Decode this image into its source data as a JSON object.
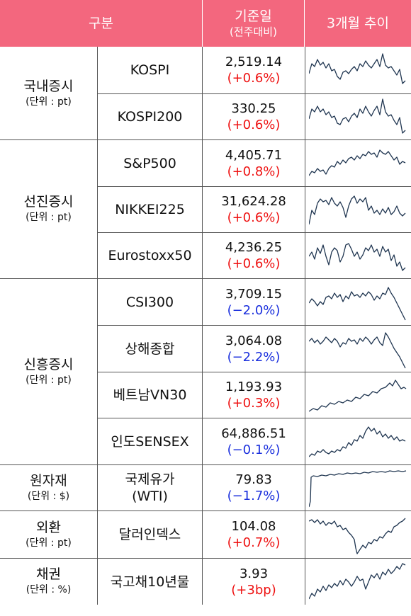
{
  "header": {
    "category": "구분",
    "base_date": "기준일",
    "base_date_sub": "(전주대비)",
    "trend": "3개월 추이"
  },
  "colors": {
    "header_bg": "#f3677e",
    "up": "#ee1111",
    "down": "#1a2fdd",
    "line": "#1f3550"
  },
  "groups": [
    {
      "label": "국내증시",
      "unit": "(단위 : pt)"
    },
    {
      "label": "선진증시",
      "unit": "(단위 : pt)"
    },
    {
      "label": "신흥증시",
      "unit": "(단위 : pt)"
    },
    {
      "label": "원자재",
      "unit": "(단위 : $)"
    },
    {
      "label": "외환",
      "unit": "(단위 : pt)"
    },
    {
      "label": "채권",
      "unit": "(단위 : %)"
    }
  ],
  "rows": [
    {
      "name": "KOSPI",
      "value": "2,519.14",
      "change": "(+0.6%)",
      "direction": "up"
    },
    {
      "name": "KOSPI200",
      "value": "330.25",
      "change": "(+0.6%)",
      "direction": "up"
    },
    {
      "name": "S&P500",
      "value": "4,405.71",
      "change": "(+0.8%)",
      "direction": "up"
    },
    {
      "name": "NIKKEI225",
      "value": "31,624.28",
      "change": "(+0.6%)",
      "direction": "up"
    },
    {
      "name": "Eurostoxx50",
      "value": "4,236.25",
      "change": "(+0.6%)",
      "direction": "up"
    },
    {
      "name": "CSI300",
      "value": "3,709.15",
      "change": "(−2.0%)",
      "direction": "down"
    },
    {
      "name": "상해종합",
      "value": "3,064.08",
      "change": "(−2.2%)",
      "direction": "down"
    },
    {
      "name": "베트남VN30",
      "value": "1,193.93",
      "change": "(+0.3%)",
      "direction": "up"
    },
    {
      "name": "인도SENSEX",
      "value": "64,886.51",
      "change": "(−0.1%)",
      "direction": "down"
    },
    {
      "name": "국제유가",
      "name2": "(WTI)",
      "value": "79.83",
      "change": "(−1.7%)",
      "direction": "down"
    },
    {
      "name": "달러인덱스",
      "value": "104.08",
      "change": "(+0.7%)",
      "direction": "up"
    },
    {
      "name": "국고채10년물",
      "value": "3.93",
      "change": "(+3bp)",
      "direction": "up"
    }
  ]
}
